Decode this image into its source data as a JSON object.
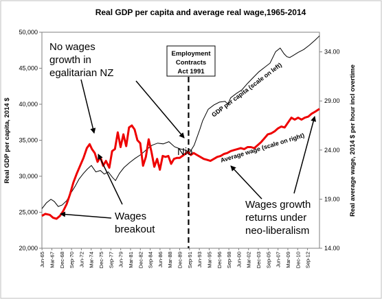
{
  "chart_data": {
    "type": "line",
    "title": "Real GDP per capita and average real wage,1965-2014",
    "ylabel_left": "Real GDP per capita, 2014 $",
    "ylabel_right": "Real average wage, 2014 $ per hour incl overtime",
    "ylim_left": [
      20000,
      50000
    ],
    "ylim_right": [
      14.0,
      36.0
    ],
    "yticks_left": [
      "20,000",
      "25,000",
      "30,000",
      "35,000",
      "40,000",
      "45,000",
      "50,000"
    ],
    "yticks_right": [
      "14.00",
      "19.00",
      "24.00",
      "29.00",
      "34.00"
    ],
    "yticks_right_values": [
      14,
      19,
      24,
      29,
      34
    ],
    "xlim": [
      1965.4,
      2014.8
    ],
    "xticks": [
      "Jun-65",
      "Mar-67",
      "Dec-68",
      "Sep-70",
      "Jun-72",
      "Mar-74",
      "Dec-75",
      "Sep-77",
      "Jun-79",
      "Mar-81",
      "Dec-82",
      "Sep-84",
      "Jun-86",
      "Mar-88",
      "Dec-89",
      "Sep-91",
      "Jun-93",
      "Mar-95",
      "Dec-96",
      "Sep-98",
      "Jun-00",
      "Mar-02",
      "Dec-03",
      "Sep-05",
      "Jun-07",
      "Mar-09",
      "Dec-10",
      "Sep-12"
    ],
    "xticks_values": [
      1965.42,
      1967.17,
      1968.92,
      1970.67,
      1972.42,
      1974.17,
      1975.92,
      1977.67,
      1979.42,
      1981.17,
      1982.92,
      1984.67,
      1986.42,
      1988.17,
      1989.92,
      1991.67,
      1993.42,
      1995.17,
      1996.92,
      1998.67,
      2000.42,
      2002.17,
      2003.92,
      2005.67,
      2007.42,
      2009.17,
      2010.92,
      2012.67
    ],
    "series": [
      {
        "name": "GDP per capita (scale on left)",
        "axis": "left",
        "color": "#000000",
        "x": [
          1965.4,
          1966.2,
          1967.0,
          1967.6,
          1968.3,
          1969.0,
          1969.8,
          1970.5,
          1971.3,
          1972.0,
          1972.8,
          1973.5,
          1974.2,
          1975.0,
          1975.8,
          1976.5,
          1977.2,
          1978.0,
          1978.5,
          1979.2,
          1980.0,
          1981.0,
          1982.0,
          1983.0,
          1984.0,
          1985.0,
          1986.0,
          1987.0,
          1988.0,
          1989.0,
          1990.0,
          1991.0,
          1991.7,
          1992.5,
          1993.0,
          1993.5,
          1994.0,
          1995.0,
          1996.0,
          1997.0,
          1998.0,
          1998.5,
          1999.0,
          2000.0,
          2001.0,
          2002.0,
          2003.0,
          2004.0,
          2005.0,
          2006.0,
          2007.0,
          2007.8,
          2008.5,
          2009.0,
          2009.5,
          2010.0,
          2011.0,
          2012.0,
          2013.0,
          2014.0,
          2014.8
        ],
        "y": [
          25500,
          26300,
          26800,
          26500,
          25800,
          26000,
          26600,
          27600,
          28600,
          29600,
          30400,
          31000,
          31500,
          30600,
          30800,
          30300,
          30600,
          29800,
          29400,
          30400,
          31200,
          31900,
          32500,
          33000,
          33700,
          34300,
          34600,
          34500,
          34800,
          34100,
          33800,
          33600,
          33300,
          34300,
          35400,
          36500,
          37700,
          39300,
          39900,
          40300,
          40400,
          40000,
          40900,
          41500,
          42000,
          42900,
          43700,
          44500,
          45100,
          45700,
          47300,
          47800,
          47000,
          46600,
          46500,
          46700,
          47200,
          47600,
          48200,
          48900,
          49500
        ]
      },
      {
        "name": "Average wage (scale on right)",
        "axis": "right",
        "color": "#ee0000",
        "x": [
          1965.4,
          1966.0,
          1966.8,
          1967.4,
          1968.0,
          1968.6,
          1969.2,
          1969.8,
          1970.4,
          1971.0,
          1971.6,
          1972.2,
          1972.8,
          1973.4,
          1973.9,
          1974.3,
          1974.8,
          1975.3,
          1975.8,
          1976.3,
          1976.8,
          1977.4,
          1977.9,
          1978.4,
          1978.9,
          1979.4,
          1979.9,
          1980.4,
          1980.9,
          1981.4,
          1981.9,
          1982.4,
          1982.9,
          1983.4,
          1983.9,
          1984.4,
          1984.9,
          1985.4,
          1985.9,
          1986.4,
          1986.9,
          1987.4,
          1987.9,
          1988.4,
          1988.9,
          1989.4,
          1989.9,
          1990.4,
          1990.9,
          1991.4,
          1991.9,
          1992.4,
          1993.0,
          1993.6,
          1994.2,
          1994.8,
          1995.4,
          1996.0,
          1996.6,
          1997.2,
          1997.8,
          1998.4,
          1999.0,
          1999.6,
          2000.2,
          2000.8,
          2001.4,
          2002.0,
          2002.6,
          2003.2,
          2003.8,
          2004.4,
          2005.0,
          2005.6,
          2006.2,
          2006.8,
          2007.4,
          2008.0,
          2008.6,
          2009.2,
          2009.8,
          2010.4,
          2011.0,
          2011.6,
          2012.2,
          2012.8,
          2013.4,
          2014.0,
          2014.8
        ],
        "y": [
          17.3,
          17.5,
          17.4,
          17.1,
          17.0,
          17.3,
          17.8,
          18.5,
          19.5,
          20.7,
          21.6,
          22.4,
          23.2,
          24.2,
          24.6,
          24.1,
          23.7,
          22.8,
          23.3,
          22.4,
          22.9,
          22.2,
          23.9,
          24.1,
          25.8,
          24.3,
          25.6,
          24.4,
          26.3,
          26.5,
          26.1,
          25.0,
          24.7,
          22.4,
          23.3,
          25.1,
          23.8,
          22.3,
          23.1,
          22.0,
          23.4,
          23.3,
          23.4,
          22.6,
          23.1,
          23.2,
          23.2,
          23.4,
          23.6,
          23.8,
          23.5,
          23.7,
          23.5,
          23.3,
          23.1,
          23.0,
          22.9,
          23.1,
          23.3,
          23.4,
          23.6,
          23.7,
          23.9,
          24.0,
          24.1,
          24.2,
          24.1,
          24.3,
          24.3,
          24.2,
          24.5,
          24.8,
          25.2,
          25.6,
          25.7,
          25.9,
          26.2,
          26.4,
          26.3,
          26.8,
          27.3,
          27.1,
          27.3,
          27.1,
          27.3,
          27.4,
          27.7,
          27.9,
          28.2
        ]
      }
    ],
    "annotations": {
      "vline": {
        "x": 1991.5,
        "label_lines": [
          "Employment",
          "Contracts",
          "Act 1991"
        ]
      },
      "no_wages_growth": [
        "No wages",
        "growth in",
        "egalitarian NZ"
      ],
      "wages_breakout": [
        "Wages",
        "breakout"
      ],
      "nio": "Nio",
      "wages_growth_returns": [
        "Wages growth",
        "returns under",
        "neo-liberalism"
      ],
      "gdp_label": "GDP per capita (scale on left)",
      "wage_label": "Average wage (scale on right)"
    },
    "grid": false,
    "legend": "none"
  }
}
